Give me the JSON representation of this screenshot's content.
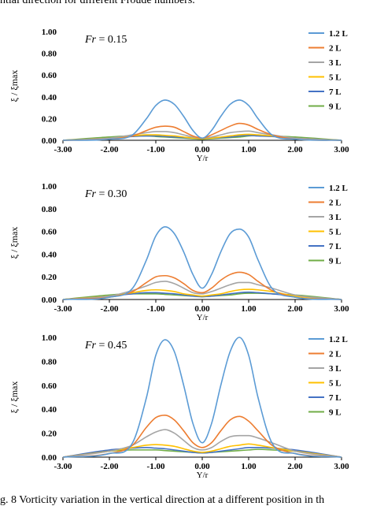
{
  "captions": {
    "top": "ntial direction for different Froude numbers.",
    "bottom": "g. 8 Vorticity variation in the vertical direction at a different position in th"
  },
  "chart_data": [
    {
      "type": "line",
      "annotation_prefix": "Fr",
      "annotation_value": " = 0.15",
      "xlabel": "Y/r",
      "ylabel": "ξ / ξmax",
      "xlim": [
        -3,
        3
      ],
      "ylim": [
        0,
        1
      ],
      "x_ticks": [
        "-3.00",
        "-2.00",
        "-1.00",
        "0.00",
        "1.00",
        "2.00",
        "3.00"
      ],
      "y_ticks": [
        "0.00",
        "0.20",
        "0.40",
        "0.60",
        "0.80",
        "1.00"
      ],
      "legend_position": "top-right",
      "x": [
        -3.0,
        -2.0,
        -1.5,
        -1.2,
        -1.0,
        -0.8,
        -0.6,
        -0.4,
        -0.2,
        0.0,
        0.2,
        0.4,
        0.6,
        0.8,
        1.0,
        1.2,
        1.5,
        2.0,
        3.0
      ],
      "series": [
        {
          "name": "1.2 L",
          "color": "#5B9BD5",
          "values": [
            0.0,
            0.01,
            0.05,
            0.2,
            0.32,
            0.37,
            0.33,
            0.22,
            0.09,
            0.02,
            0.09,
            0.22,
            0.33,
            0.37,
            0.32,
            0.2,
            0.05,
            0.01,
            0.0
          ]
        },
        {
          "name": "2 L",
          "color": "#ED7D31",
          "values": [
            0.0,
            0.01,
            0.04,
            0.09,
            0.12,
            0.13,
            0.12,
            0.08,
            0.04,
            0.02,
            0.05,
            0.09,
            0.13,
            0.155,
            0.14,
            0.1,
            0.05,
            0.01,
            0.0
          ]
        },
        {
          "name": "3 L",
          "color": "#A5A5A5",
          "values": [
            0.0,
            0.02,
            0.05,
            0.07,
            0.08,
            0.08,
            0.07,
            0.05,
            0.03,
            0.02,
            0.03,
            0.05,
            0.07,
            0.08,
            0.085,
            0.07,
            0.05,
            0.02,
            0.0
          ]
        },
        {
          "name": "5 L",
          "color": "#FFC000",
          "values": [
            0.0,
            0.02,
            0.04,
            0.05,
            0.05,
            0.045,
            0.04,
            0.03,
            0.02,
            0.015,
            0.02,
            0.03,
            0.04,
            0.05,
            0.055,
            0.05,
            0.04,
            0.02,
            0.0
          ]
        },
        {
          "name": "7 L",
          "color": "#4472C4",
          "values": [
            0.0,
            0.02,
            0.035,
            0.04,
            0.04,
            0.035,
            0.03,
            0.025,
            0.02,
            0.015,
            0.02,
            0.025,
            0.03,
            0.04,
            0.045,
            0.04,
            0.035,
            0.02,
            0.0
          ]
        },
        {
          "name": "9 L",
          "color": "#70AD47",
          "values": [
            0.0,
            0.03,
            0.04,
            0.04,
            0.035,
            0.03,
            0.025,
            0.02,
            0.015,
            0.01,
            0.015,
            0.02,
            0.025,
            0.03,
            0.04,
            0.045,
            0.04,
            0.03,
            0.0
          ]
        }
      ]
    },
    {
      "type": "line",
      "annotation_prefix": "Fr",
      "annotation_value": " = 0.30",
      "xlabel": "Y/r",
      "ylabel": "ξ / ξmax",
      "xlim": [
        -3,
        3
      ],
      "ylim": [
        0,
        1
      ],
      "x_ticks": [
        "-3.00",
        "-2.00",
        "-1.00",
        "0.00",
        "1.00",
        "2.00",
        "3.00"
      ],
      "y_ticks": [
        "0.00",
        "0.20",
        "0.40",
        "0.60",
        "0.80",
        "1.00"
      ],
      "legend_position": "top-right",
      "x": [
        -3.0,
        -2.0,
        -1.5,
        -1.2,
        -1.0,
        -0.8,
        -0.6,
        -0.4,
        -0.2,
        0.0,
        0.2,
        0.4,
        0.6,
        0.8,
        1.0,
        1.2,
        1.5,
        2.0,
        3.0
      ],
      "series": [
        {
          "name": "1.2 L",
          "color": "#5B9BD5",
          "values": [
            0.0,
            0.02,
            0.1,
            0.35,
            0.56,
            0.64,
            0.58,
            0.42,
            0.22,
            0.1,
            0.22,
            0.42,
            0.58,
            0.62,
            0.55,
            0.35,
            0.1,
            0.02,
            0.0
          ]
        },
        {
          "name": "2 L",
          "color": "#ED7D31",
          "values": [
            0.0,
            0.02,
            0.07,
            0.15,
            0.2,
            0.21,
            0.19,
            0.14,
            0.08,
            0.06,
            0.1,
            0.17,
            0.22,
            0.24,
            0.22,
            0.16,
            0.08,
            0.02,
            0.0
          ]
        },
        {
          "name": "3 L",
          "color": "#A5A5A5",
          "values": [
            0.0,
            0.03,
            0.08,
            0.12,
            0.15,
            0.16,
            0.14,
            0.1,
            0.06,
            0.05,
            0.07,
            0.1,
            0.13,
            0.15,
            0.15,
            0.13,
            0.1,
            0.04,
            0.0
          ]
        },
        {
          "name": "5 L",
          "color": "#FFC000",
          "values": [
            0.0,
            0.03,
            0.06,
            0.08,
            0.085,
            0.08,
            0.07,
            0.05,
            0.04,
            0.03,
            0.04,
            0.05,
            0.07,
            0.085,
            0.09,
            0.085,
            0.07,
            0.03,
            0.0
          ]
        },
        {
          "name": "7 L",
          "color": "#4472C4",
          "values": [
            0.0,
            0.03,
            0.05,
            0.06,
            0.06,
            0.055,
            0.05,
            0.04,
            0.03,
            0.025,
            0.03,
            0.04,
            0.05,
            0.06,
            0.065,
            0.06,
            0.05,
            0.03,
            0.0
          ]
        },
        {
          "name": "9 L",
          "color": "#70AD47",
          "values": [
            0.0,
            0.04,
            0.05,
            0.05,
            0.05,
            0.045,
            0.04,
            0.035,
            0.03,
            0.025,
            0.03,
            0.035,
            0.04,
            0.05,
            0.055,
            0.055,
            0.05,
            0.04,
            0.0
          ]
        }
      ]
    },
    {
      "type": "line",
      "annotation_prefix": "Fr",
      "annotation_value": " = 0.45",
      "xlabel": "Y/r",
      "ylabel": "ξ / ξmax",
      "xlim": [
        -3,
        3
      ],
      "ylim": [
        0,
        1
      ],
      "x_ticks": [
        "-3.00",
        "-2.00",
        "-1.00",
        "0.00",
        "1.00",
        "2.00",
        "3.00"
      ],
      "y_ticks": [
        "0.00",
        "0.20",
        "0.40",
        "0.60",
        "0.80",
        "1.00"
      ],
      "legend_position": "top-right",
      "x": [
        -3.0,
        -2.0,
        -1.5,
        -1.2,
        -1.0,
        -0.8,
        -0.6,
        -0.4,
        -0.2,
        0.0,
        0.2,
        0.4,
        0.6,
        0.8,
        1.0,
        1.2,
        1.5,
        2.0,
        3.0
      ],
      "series": [
        {
          "name": "1.2 L",
          "color": "#5B9BD5",
          "values": [
            0.0,
            0.03,
            0.12,
            0.5,
            0.85,
            0.98,
            0.88,
            0.6,
            0.28,
            0.12,
            0.28,
            0.6,
            0.88,
            1.0,
            0.85,
            0.5,
            0.12,
            0.03,
            0.0
          ]
        },
        {
          "name": "2 L",
          "color": "#ED7D31",
          "values": [
            0.0,
            0.03,
            0.1,
            0.25,
            0.33,
            0.35,
            0.31,
            0.22,
            0.12,
            0.08,
            0.12,
            0.22,
            0.31,
            0.34,
            0.3,
            0.22,
            0.1,
            0.03,
            0.0
          ]
        },
        {
          "name": "3 L",
          "color": "#A5A5A5",
          "values": [
            0.0,
            0.05,
            0.1,
            0.17,
            0.21,
            0.23,
            0.2,
            0.14,
            0.08,
            0.06,
            0.08,
            0.13,
            0.17,
            0.18,
            0.18,
            0.16,
            0.12,
            0.05,
            0.0
          ]
        },
        {
          "name": "5 L",
          "color": "#FFC000",
          "values": [
            0.0,
            0.05,
            0.08,
            0.1,
            0.105,
            0.1,
            0.09,
            0.07,
            0.05,
            0.04,
            0.05,
            0.07,
            0.09,
            0.1,
            0.11,
            0.1,
            0.08,
            0.05,
            0.0
          ]
        },
        {
          "name": "7 L",
          "color": "#4472C4",
          "values": [
            0.0,
            0.06,
            0.075,
            0.08,
            0.075,
            0.07,
            0.06,
            0.05,
            0.04,
            0.035,
            0.04,
            0.05,
            0.06,
            0.07,
            0.08,
            0.08,
            0.075,
            0.06,
            0.0
          ]
        },
        {
          "name": "9 L",
          "color": "#70AD47",
          "values": [
            0.0,
            0.05,
            0.06,
            0.06,
            0.06,
            0.055,
            0.05,
            0.045,
            0.04,
            0.035,
            0.04,
            0.045,
            0.05,
            0.055,
            0.06,
            0.065,
            0.06,
            0.05,
            0.0
          ]
        }
      ]
    }
  ]
}
